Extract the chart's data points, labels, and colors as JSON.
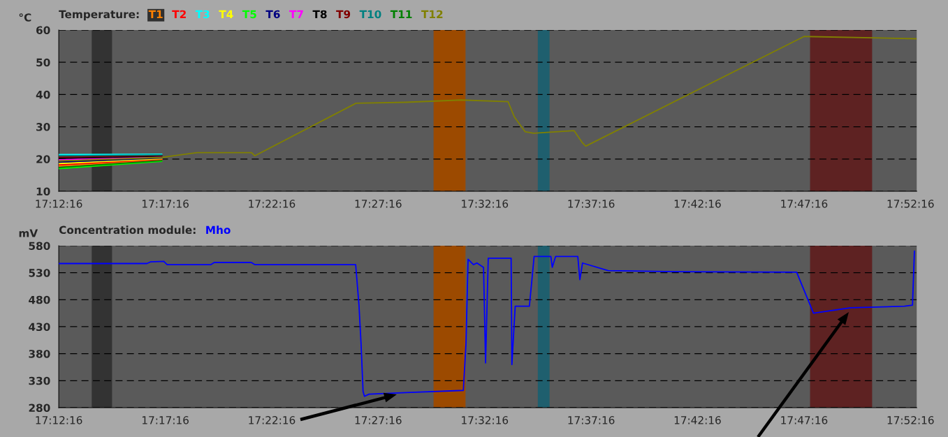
{
  "chart_data": [
    {
      "type": "line",
      "ylabel": "°C",
      "legend_title": "Temperature:",
      "legend": "top left",
      "grid": "y",
      "line_style": "solid",
      "x": [
        17.2044,
        17.2851,
        17.3128,
        17.3553,
        17.3578,
        17.4371,
        17.4761,
        17.5194,
        17.5561,
        17.5611,
        17.5694,
        17.5761,
        17.6078,
        17.6144,
        17.6169,
        17.7878,
        17.8757
      ],
      "xlim": [
        17.2044,
        17.876
      ],
      "xticks": [
        {
          "value": 17.2044,
          "label": "17:12:16"
        },
        {
          "value": 17.2878,
          "label": "17:17:16"
        },
        {
          "value": 17.3711,
          "label": "17:22:16"
        },
        {
          "value": 17.4544,
          "label": "17:27:16"
        },
        {
          "value": 17.5378,
          "label": "17:32:16"
        },
        {
          "value": 17.6211,
          "label": "17:37:16"
        },
        {
          "value": 17.7044,
          "label": "17:42:16"
        },
        {
          "value": 17.7878,
          "label": "17:47:16"
        },
        {
          "value": 17.8711,
          "label": "17:52:16"
        }
      ],
      "ylim": [
        10,
        60
      ],
      "yticks": [
        10,
        20,
        30,
        40,
        50,
        60
      ],
      "bands": [
        {
          "axis": "x",
          "from": 17.2302,
          "to": 17.2461,
          "color": "#333333"
        },
        {
          "axis": "x",
          "from": 17.4978,
          "to": 17.5228,
          "color": "#9c4a00"
        },
        {
          "axis": "x",
          "from": 17.5794,
          "to": 17.5886,
          "color": "#1f5f6e"
        },
        {
          "axis": "x",
          "from": 17.7925,
          "to": 17.8411,
          "color": "#5e2222"
        }
      ],
      "series": [
        {
          "name": "T1",
          "color": "#ff8000",
          "values": [
            17.8,
            19.7,
            null,
            null,
            null,
            null,
            null,
            null,
            null,
            null,
            null,
            null,
            null,
            null,
            null,
            null,
            null
          ]
        },
        {
          "name": "T2",
          "color": "#ff0000",
          "values": [
            18.2,
            19.9,
            null,
            null,
            null,
            null,
            null,
            null,
            null,
            null,
            null,
            null,
            null,
            null,
            null,
            null,
            null
          ]
        },
        {
          "name": "T3",
          "color": "#00ffff",
          "values": [
            21.4,
            21.5,
            null,
            null,
            null,
            null,
            null,
            null,
            null,
            null,
            null,
            null,
            null,
            null,
            null,
            null,
            null
          ]
        },
        {
          "name": "T4",
          "color": "#ffff00",
          "values": [
            18.6,
            20.1,
            null,
            null,
            null,
            null,
            null,
            null,
            null,
            null,
            null,
            null,
            null,
            null,
            null,
            null,
            null
          ]
        },
        {
          "name": "T5",
          "color": "#00ff00",
          "values": [
            17,
            19.3,
            null,
            null,
            null,
            null,
            null,
            null,
            null,
            null,
            null,
            null,
            null,
            null,
            null,
            null,
            null
          ]
        },
        {
          "name": "T6",
          "color": "#000080",
          "values": [
            19,
            20.3,
            null,
            null,
            null,
            null,
            null,
            null,
            null,
            null,
            null,
            null,
            null,
            null,
            null,
            null,
            null
          ]
        },
        {
          "name": "T7",
          "color": "#ff00ff",
          "values": [
            19.8,
            20.7,
            null,
            null,
            null,
            null,
            null,
            null,
            null,
            null,
            null,
            null,
            null,
            null,
            null,
            null,
            null
          ]
        },
        {
          "name": "T8",
          "color": "#000000",
          "values": [
            20.2,
            20.9,
            null,
            null,
            null,
            null,
            null,
            null,
            null,
            null,
            null,
            null,
            null,
            null,
            null,
            null,
            null
          ]
        },
        {
          "name": "T9",
          "color": "#800000",
          "values": [
            20.6,
            21.1,
            null,
            null,
            null,
            null,
            null,
            null,
            null,
            null,
            null,
            null,
            null,
            null,
            null,
            null,
            null
          ]
        },
        {
          "name": "T10",
          "color": "#008080",
          "values": [
            21,
            21.3,
            null,
            null,
            null,
            null,
            null,
            null,
            null,
            null,
            null,
            null,
            null,
            null,
            null,
            null,
            null
          ]
        },
        {
          "name": "T11",
          "color": "#008000",
          "values": [
            17.4,
            19.5,
            null,
            null,
            null,
            null,
            null,
            null,
            null,
            null,
            null,
            null,
            null,
            null,
            null,
            null,
            null
          ]
        },
        {
          "name": "T12",
          "color": "#808000",
          "values": [
            19.4,
            20.5,
            22,
            22,
            21,
            37.3,
            37.6,
            38.3,
            37.8,
            33,
            28.5,
            28,
            28.8,
            25,
            24,
            58,
            57.3
          ]
        }
      ]
    },
    {
      "type": "line",
      "ylabel": "mV",
      "legend_title": "Concentration module:",
      "legend": "top left",
      "grid": "y",
      "line_style": "solid",
      "x": [
        17.2044,
        17.2734,
        17.2761,
        17.2866,
        17.2892,
        17.3235,
        17.3261,
        17.3551,
        17.3578,
        17.4368,
        17.4394,
        17.441,
        17.4426,
        17.4437,
        17.4473,
        17.4763,
        17.5211,
        17.5232,
        17.5248,
        17.529,
        17.5317,
        17.5369,
        17.5385,
        17.5406,
        17.5585,
        17.5591,
        17.5617,
        17.5728,
        17.5765,
        17.5896,
        17.5907,
        17.5933,
        17.6107,
        17.6123,
        17.6144,
        17.6344,
        17.6871,
        17.782,
        17.7952,
        17.8242,
        17.8663,
        17.8727,
        17.8742
      ],
      "xlim": [
        17.2044,
        17.876
      ],
      "xticks": [
        {
          "value": 17.2044,
          "label": "17:12:16"
        },
        {
          "value": 17.2878,
          "label": "17:17:16"
        },
        {
          "value": 17.3711,
          "label": "17:22:16"
        },
        {
          "value": 17.4544,
          "label": "17:27:16"
        },
        {
          "value": 17.5378,
          "label": "17:32:16"
        },
        {
          "value": 17.6211,
          "label": "17:37:16"
        },
        {
          "value": 17.7044,
          "label": "17:42:16"
        },
        {
          "value": 17.7878,
          "label": "17:47:16"
        },
        {
          "value": 17.8711,
          "label": "17:52:16"
        }
      ],
      "ylim": [
        280,
        580
      ],
      "yticks": [
        280,
        330,
        380,
        430,
        480,
        530,
        580
      ],
      "bands": [
        {
          "axis": "x",
          "from": 17.2302,
          "to": 17.2461,
          "color": "#333333"
        },
        {
          "axis": "x",
          "from": 17.4978,
          "to": 17.5228,
          "color": "#9c4a00"
        },
        {
          "axis": "x",
          "from": 17.5794,
          "to": 17.5886,
          "color": "#1f5f6e"
        },
        {
          "axis": "x",
          "from": 17.7925,
          "to": 17.8411,
          "color": "#5e2222"
        }
      ],
      "series": [
        {
          "name": "Mho",
          "color": "#0000ff",
          "values": [
            547,
            547,
            550,
            551,
            545,
            545,
            549,
            549,
            545,
            545,
            470,
            400,
            310,
            301,
            305,
            308,
            312,
            400,
            555,
            545,
            548,
            540,
            363,
            557,
            557,
            360,
            468,
            468,
            560,
            560,
            540,
            560,
            560,
            517,
            548,
            534,
            532,
            531,
            455,
            465,
            468,
            470,
            570
          ]
        }
      ]
    }
  ]
}
